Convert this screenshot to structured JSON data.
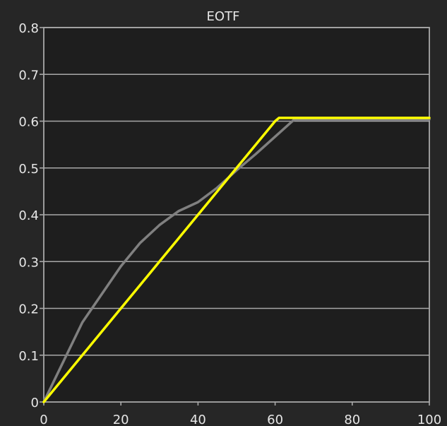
{
  "chart_data": {
    "type": "line",
    "title": "EOTF",
    "xlabel": "",
    "ylabel": "",
    "xlim": [
      0,
      100
    ],
    "ylim": [
      0,
      0.8
    ],
    "grid": true,
    "x_ticks": [
      0,
      20,
      40,
      60,
      80,
      100
    ],
    "x_tick_labels": [
      "0",
      "20",
      "40",
      "60",
      "80",
      "100"
    ],
    "y_ticks": [
      0,
      0.1,
      0.2,
      0.3,
      0.4,
      0.5,
      0.6,
      0.7,
      0.8
    ],
    "y_tick_labels": [
      "0",
      "0.1",
      "0.2",
      "0.3",
      "0.4",
      "0.5",
      "0.6",
      "0.7",
      "0.8"
    ],
    "series": [
      {
        "color": "#808080",
        "x": [
          0,
          5,
          10,
          15,
          20,
          25,
          30,
          35,
          40,
          45,
          50,
          55,
          60,
          65,
          70,
          80,
          90,
          100
        ],
        "y": [
          0.0,
          0.085,
          0.17,
          0.23,
          0.29,
          0.34,
          0.378,
          0.408,
          0.427,
          0.458,
          0.495,
          0.53,
          0.567,
          0.604,
          0.604,
          0.604,
          0.604,
          0.604
        ]
      },
      {
        "color": "#ffff00",
        "x": [
          0,
          10,
          20,
          30,
          40,
          50,
          60,
          61,
          62,
          70,
          80,
          90,
          100
        ],
        "y": [
          0.0,
          0.1,
          0.2,
          0.3,
          0.4,
          0.5,
          0.6,
          0.607,
          0.607,
          0.607,
          0.607,
          0.607,
          0.607
        ]
      }
    ]
  }
}
